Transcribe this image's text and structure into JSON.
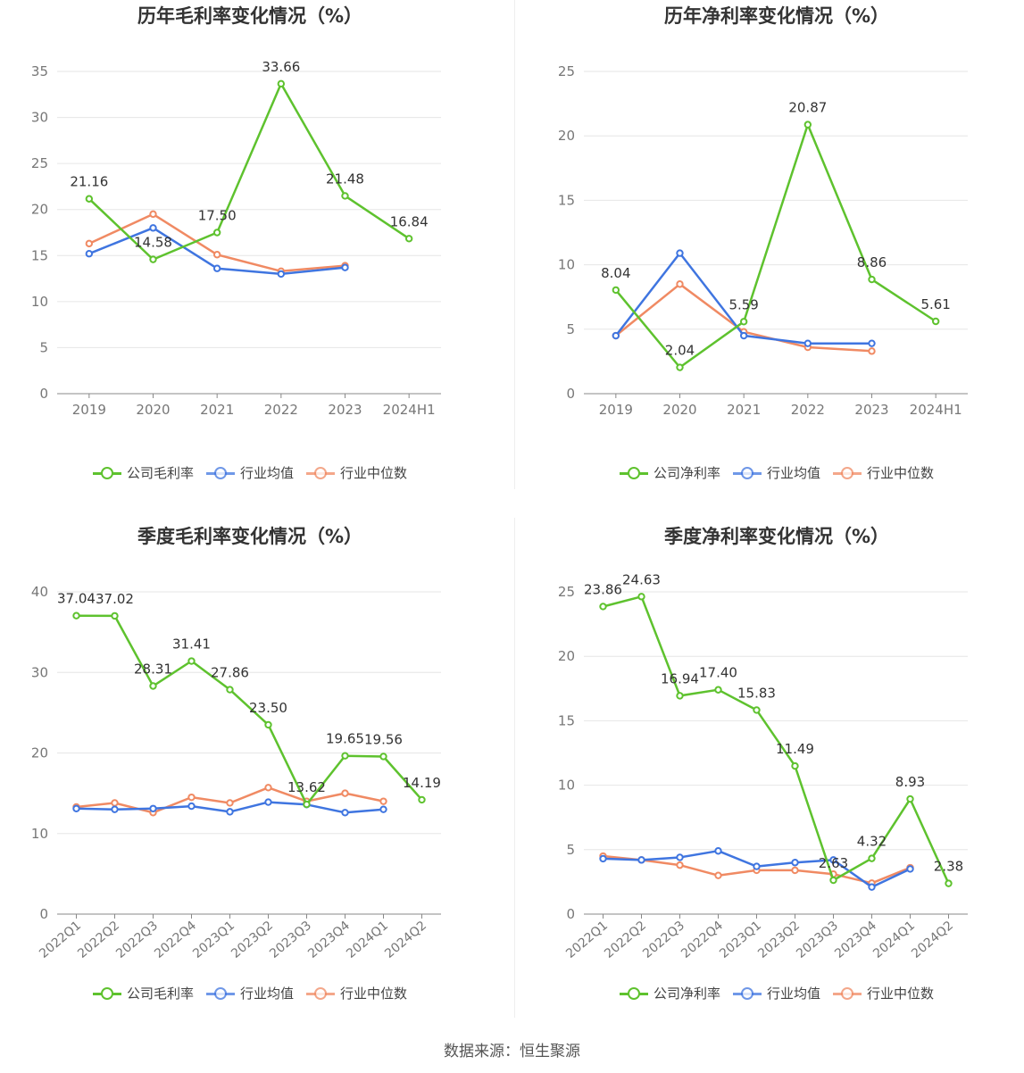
{
  "source": "数据来源：恒生聚源",
  "colors": {
    "company": "#5ec22e",
    "average": "#3f75e0",
    "median": "#f08a63",
    "grid": "#e6e6e6",
    "axis": "#777777"
  },
  "chart_data": [
    {
      "type": "line",
      "title": "历年毛利率变化情况（%）",
      "categories": [
        "2019",
        "2020",
        "2021",
        "2022",
        "2023",
        "2024H1"
      ],
      "ylim": [
        0,
        35
      ],
      "yticks": [
        0,
        5,
        10,
        15,
        20,
        25,
        30,
        35
      ],
      "grid": true,
      "legend_position": "bottom",
      "series": [
        {
          "name": "公司毛利率",
          "key": "company",
          "values": [
            21.16,
            14.58,
            17.5,
            33.66,
            21.48,
            16.84
          ],
          "labels": [
            "21.16",
            "14.58",
            "17.50",
            "33.66",
            "21.48",
            "16.84"
          ]
        },
        {
          "name": "行业均值",
          "key": "average",
          "values": [
            15.2,
            18.0,
            13.6,
            13.0,
            13.7,
            null
          ]
        },
        {
          "name": "行业中位数",
          "key": "median",
          "values": [
            16.3,
            19.5,
            15.1,
            13.3,
            13.9,
            null
          ]
        }
      ]
    },
    {
      "type": "line",
      "title": "历年净利率变化情况（%）",
      "categories": [
        "2019",
        "2020",
        "2021",
        "2022",
        "2023",
        "2024H1"
      ],
      "ylim": [
        0,
        25
      ],
      "yticks": [
        0,
        5,
        10,
        15,
        20,
        25
      ],
      "grid": true,
      "legend_position": "bottom",
      "series": [
        {
          "name": "公司净利率",
          "key": "company",
          "values": [
            8.04,
            2.04,
            5.59,
            20.87,
            8.86,
            5.61
          ],
          "labels": [
            "8.04",
            "2.04",
            "5.59",
            "20.87",
            "8.86",
            "5.61"
          ]
        },
        {
          "name": "行业均值",
          "key": "average",
          "values": [
            4.5,
            10.9,
            4.5,
            3.9,
            3.9,
            null
          ]
        },
        {
          "name": "行业中位数",
          "key": "median",
          "values": [
            4.5,
            8.5,
            4.8,
            3.6,
            3.3,
            null
          ]
        }
      ]
    },
    {
      "type": "line",
      "title": "季度毛利率变化情况（%）",
      "categories": [
        "2022Q1",
        "2022Q2",
        "2022Q3",
        "2022Q4",
        "2023Q1",
        "2023Q2",
        "2023Q3",
        "2023Q4",
        "2024Q1",
        "2024Q2"
      ],
      "ylim": [
        0,
        40
      ],
      "yticks": [
        0,
        10,
        20,
        30,
        40
      ],
      "grid": true,
      "legend_position": "bottom",
      "series": [
        {
          "name": "公司毛利率",
          "key": "company",
          "values": [
            37.04,
            37.02,
            28.31,
            31.41,
            27.86,
            23.5,
            13.62,
            19.65,
            19.56,
            14.19
          ],
          "labels": [
            "37.04",
            "37.02",
            "28.31",
            "31.41",
            "27.86",
            "23.50",
            "13.62",
            "19.65",
            "19.56",
            "14.19"
          ]
        },
        {
          "name": "行业均值",
          "key": "average",
          "values": [
            13.1,
            13.0,
            13.1,
            13.4,
            12.7,
            13.9,
            13.6,
            12.6,
            13.0,
            null
          ]
        },
        {
          "name": "行业中位数",
          "key": "median",
          "values": [
            13.3,
            13.8,
            12.6,
            14.5,
            13.8,
            15.7,
            14.0,
            15.0,
            14.0,
            null
          ]
        }
      ]
    },
    {
      "type": "line",
      "title": "季度净利率变化情况（%）",
      "categories": [
        "2022Q1",
        "2022Q2",
        "2022Q3",
        "2022Q4",
        "2023Q1",
        "2023Q2",
        "2023Q3",
        "2023Q4",
        "2024Q1",
        "2024Q2"
      ],
      "ylim": [
        0,
        25
      ],
      "yticks": [
        0,
        5,
        10,
        15,
        20,
        25
      ],
      "grid": true,
      "legend_position": "bottom",
      "series": [
        {
          "name": "公司净利率",
          "key": "company",
          "values": [
            23.86,
            24.63,
            16.94,
            17.4,
            15.83,
            11.49,
            2.63,
            4.32,
            8.93,
            2.38
          ],
          "labels": [
            "23.86",
            "24.63",
            "16.94",
            "17.40",
            "15.83",
            "11.49",
            "2.63",
            "4.32",
            "8.93",
            "2.38"
          ]
        },
        {
          "name": "行业均值",
          "key": "average",
          "values": [
            4.3,
            4.2,
            4.4,
            4.9,
            3.7,
            4.0,
            4.2,
            2.1,
            3.5,
            null
          ]
        },
        {
          "name": "行业中位数",
          "key": "median",
          "values": [
            4.5,
            4.2,
            3.8,
            3.0,
            3.4,
            3.4,
            3.1,
            2.4,
            3.6,
            null
          ]
        }
      ]
    }
  ]
}
